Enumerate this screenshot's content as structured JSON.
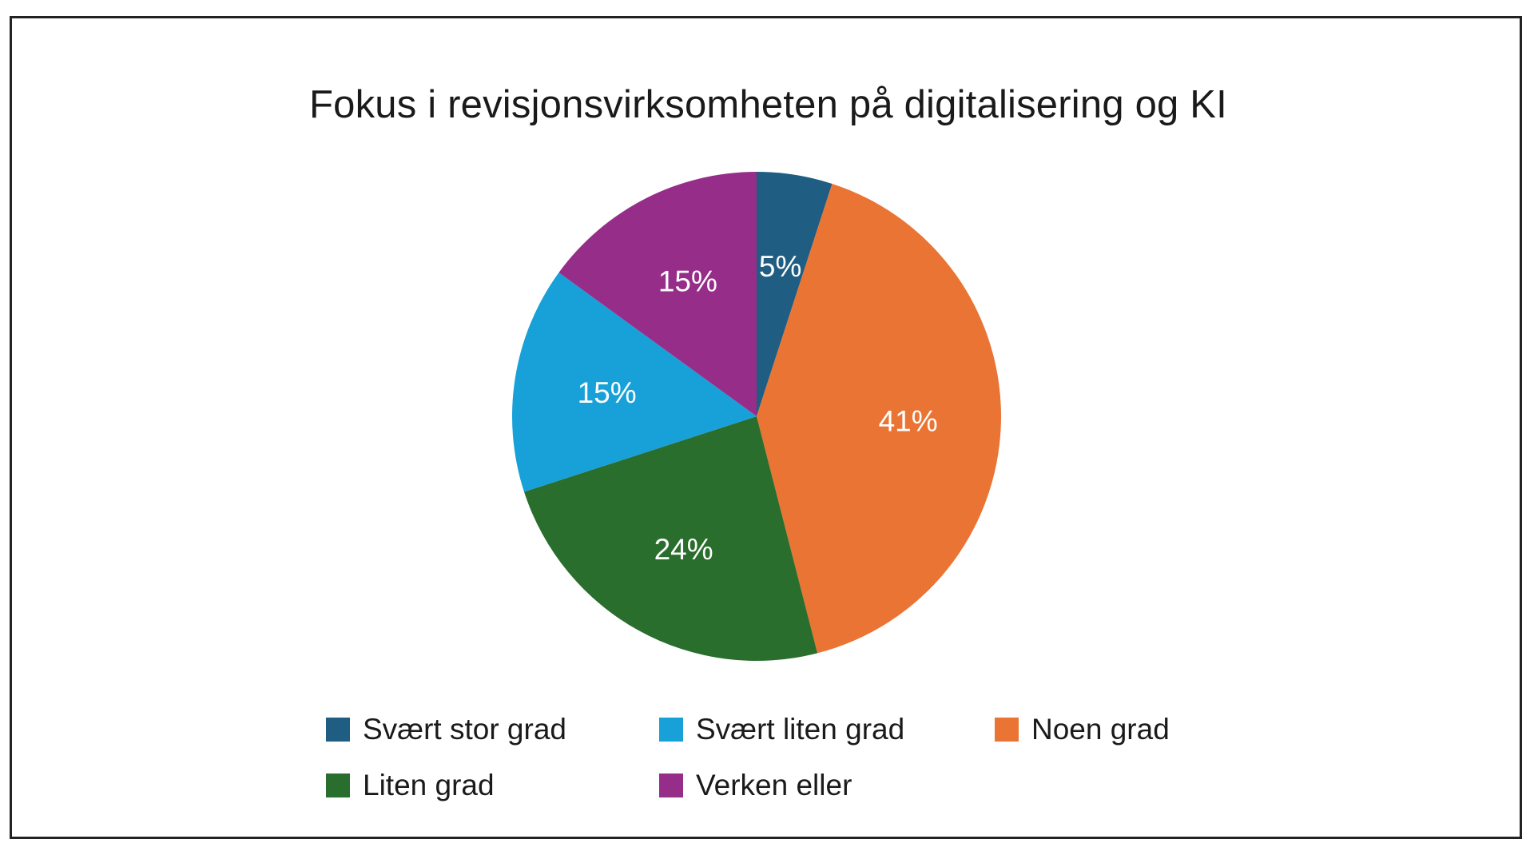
{
  "chart_data": {
    "type": "pie",
    "title": "Fokus i revisjonsvirksomheten på digitalisering og KI",
    "legend_position": "bottom",
    "slices": [
      {
        "name": "Svært stor grad",
        "value": 5,
        "label": "5%",
        "color": "#1f5e82"
      },
      {
        "name": "Noen grad",
        "value": 41,
        "label": "41%",
        "color": "#ea7434"
      },
      {
        "name": "Liten grad",
        "value": 24,
        "label": "24%",
        "color": "#2a6e2e"
      },
      {
        "name": "Svært liten grad",
        "value": 15,
        "label": "15%",
        "color": "#18a1d8"
      },
      {
        "name": "Verken eller",
        "value": 15,
        "label": "15%",
        "color": "#962e89"
      }
    ],
    "legend": [
      {
        "label": "Svært stor grad",
        "color": "#1f5e82"
      },
      {
        "label": "Svært liten grad",
        "color": "#18a1d8"
      },
      {
        "label": "Noen grad",
        "color": "#ea7434"
      },
      {
        "label": "Liten grad",
        "color": "#2a6e2e"
      },
      {
        "label": "Verken eller",
        "color": "#962e89"
      }
    ]
  }
}
